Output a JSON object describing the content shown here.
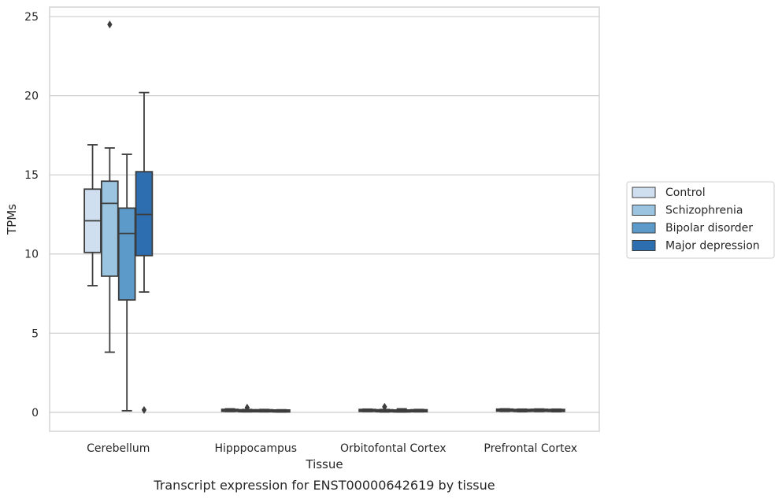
{
  "chart_data": {
    "type": "box",
    "xlabel": "Tissue",
    "ylabel": "TPMs",
    "caption": "Transcript expression for ENST00000642619 by tissue",
    "ylim": [
      -1.2,
      25.6
    ],
    "yticks": [
      0,
      5,
      10,
      15,
      20,
      25
    ],
    "ytick_labels": [
      "0",
      "5",
      "10",
      "15",
      "20",
      "25"
    ],
    "grid": "horizontal",
    "legend_position": "right",
    "categories": [
      "Cerebellum",
      "Hipppocampus",
      "Orbitofontal Cortex",
      "Prefrontal Cortex"
    ],
    "series": [
      {
        "name": "Control",
        "color": "#cfdff0",
        "boxes": [
          {
            "whisker_low": 8.0,
            "q1": 10.1,
            "median": 12.1,
            "q3": 14.1,
            "whisker_high": 16.9,
            "outliers": []
          },
          {
            "whisker_low": 0.05,
            "q1": 0.08,
            "median": 0.12,
            "q3": 0.17,
            "whisker_high": 0.22,
            "outliers": []
          },
          {
            "whisker_low": 0.05,
            "q1": 0.08,
            "median": 0.12,
            "q3": 0.16,
            "whisker_high": 0.2,
            "outliers": []
          },
          {
            "whisker_low": 0.06,
            "q1": 0.1,
            "median": 0.14,
            "q3": 0.18,
            "whisker_high": 0.22,
            "outliers": []
          }
        ]
      },
      {
        "name": "Schizophrenia",
        "color": "#9ac4df",
        "boxes": [
          {
            "whisker_low": 3.8,
            "q1": 8.6,
            "median": 13.2,
            "q3": 14.6,
            "whisker_high": 16.7,
            "outliers": [
              24.5
            ]
          },
          {
            "whisker_low": 0.03,
            "q1": 0.06,
            "median": 0.1,
            "q3": 0.14,
            "whisker_high": 0.18,
            "outliers": [
              0.3
            ]
          },
          {
            "whisker_low": 0.02,
            "q1": 0.06,
            "median": 0.1,
            "q3": 0.14,
            "whisker_high": 0.18,
            "outliers": [
              0.35
            ]
          },
          {
            "whisker_low": 0.04,
            "q1": 0.08,
            "median": 0.12,
            "q3": 0.16,
            "whisker_high": 0.2,
            "outliers": []
          }
        ]
      },
      {
        "name": "Bipolar disorder",
        "color": "#5c9bc9",
        "boxes": [
          {
            "whisker_low": 0.1,
            "q1": 7.1,
            "median": 11.3,
            "q3": 12.9,
            "whisker_high": 16.3,
            "outliers": []
          },
          {
            "whisker_low": 0.03,
            "q1": 0.06,
            "median": 0.1,
            "q3": 0.14,
            "whisker_high": 0.18,
            "outliers": []
          },
          {
            "whisker_low": 0.02,
            "q1": 0.05,
            "median": 0.08,
            "q3": 0.12,
            "whisker_high": 0.22,
            "outliers": []
          },
          {
            "whisker_low": 0.05,
            "q1": 0.09,
            "median": 0.13,
            "q3": 0.17,
            "whisker_high": 0.21,
            "outliers": []
          }
        ]
      },
      {
        "name": "Major depression",
        "color": "#2c6eaf",
        "boxes": [
          {
            "whisker_low": 7.6,
            "q1": 9.9,
            "median": 12.5,
            "q3": 15.2,
            "whisker_high": 20.2,
            "outliers": [
              0.15
            ]
          },
          {
            "whisker_low": 0.02,
            "q1": 0.05,
            "median": 0.08,
            "q3": 0.12,
            "whisker_high": 0.16,
            "outliers": []
          },
          {
            "whisker_low": 0.03,
            "q1": 0.06,
            "median": 0.1,
            "q3": 0.14,
            "whisker_high": 0.18,
            "outliers": []
          },
          {
            "whisker_low": 0.04,
            "q1": 0.08,
            "median": 0.12,
            "q3": 0.16,
            "whisker_high": 0.2,
            "outliers": []
          }
        ]
      }
    ]
  }
}
